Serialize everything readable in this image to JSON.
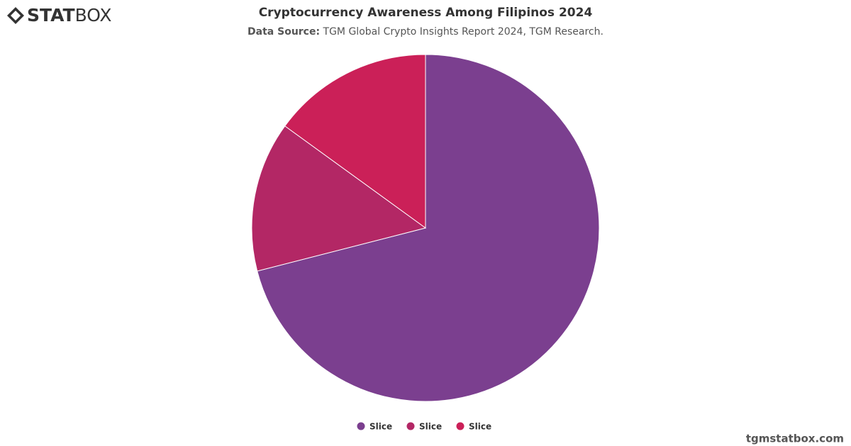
{
  "logo": {
    "bold": "STAT",
    "light": "BOX"
  },
  "footer": "tgmstatbox.com",
  "chart_data": {
    "type": "pie",
    "title": "Cryptocurrency Awareness Among Filipinos 2024",
    "subtitle_label": "Data Source:",
    "subtitle": "TGM Global Crypto Insights Report 2024, TGM Research.",
    "categories": [
      "Slice",
      "Slice",
      "Slice"
    ],
    "values": [
      71,
      14,
      15
    ],
    "colors": [
      "#7b3f8f",
      "#b32765",
      "#cb2058"
    ],
    "legend": "bottom"
  }
}
